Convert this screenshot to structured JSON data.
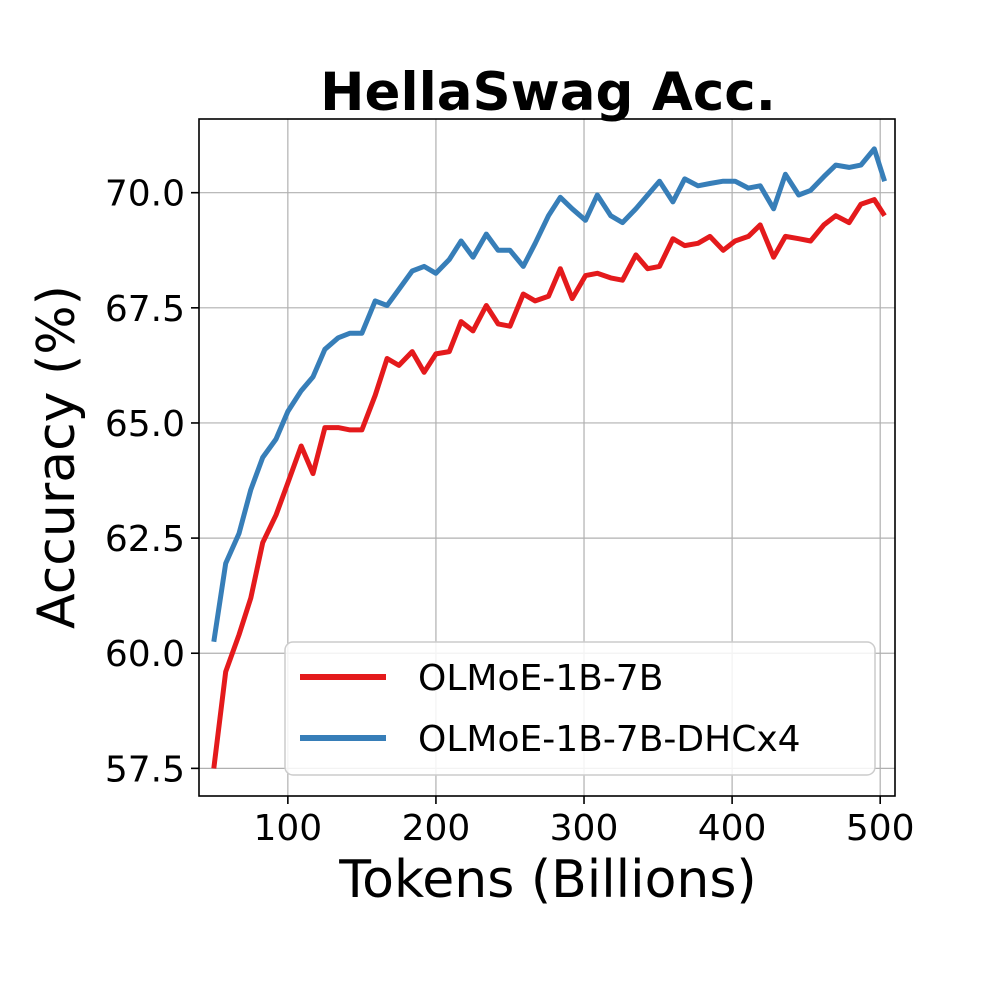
{
  "chart_data": {
    "type": "line",
    "title": "HellaSwag Acc.",
    "xlabel": "Tokens (Billions)",
    "ylabel": "Accuracy (%)",
    "xlim": [
      40,
      510
    ],
    "ylim": [
      56.9,
      71.6
    ],
    "xticks": [
      100,
      200,
      300,
      400,
      500
    ],
    "yticks": [
      57.5,
      60.0,
      62.5,
      65.0,
      67.5,
      70.0
    ],
    "ytick_labels": [
      "57.5",
      "60.0",
      "62.5",
      "65.0",
      "67.5",
      "70.0"
    ],
    "xtick_labels": [
      "100",
      "200",
      "300",
      "400",
      "500"
    ],
    "grid": true,
    "legend_position": "lower-right",
    "series": [
      {
        "name": "OLMoE-1B-7B",
        "color": "#e41a1c",
        "x": [
          50,
          58,
          67,
          75,
          83,
          92,
          100,
          109,
          117,
          125,
          134,
          142,
          150,
          159,
          167,
          175,
          184,
          192,
          200,
          209,
          217,
          225,
          234,
          242,
          250,
          259,
          267,
          276,
          284,
          292,
          301,
          309,
          318,
          326,
          335,
          343,
          351,
          360,
          368,
          377,
          385,
          394,
          402,
          411,
          419,
          428,
          436,
          445,
          453,
          462,
          470,
          479,
          487,
          496,
          503
        ],
        "y": [
          57.5,
          59.6,
          60.4,
          61.2,
          62.4,
          63.0,
          63.7,
          64.5,
          63.9,
          64.9,
          64.9,
          64.85,
          64.85,
          65.6,
          66.4,
          66.25,
          66.55,
          66.1,
          66.5,
          66.55,
          67.2,
          67.0,
          67.55,
          67.15,
          67.1,
          67.8,
          67.65,
          67.75,
          68.35,
          67.7,
          68.2,
          68.25,
          68.15,
          68.1,
          68.65,
          68.35,
          68.4,
          69.0,
          68.85,
          68.9,
          69.05,
          68.75,
          68.95,
          69.05,
          69.3,
          68.6,
          69.05,
          69.0,
          68.95,
          69.3,
          69.5,
          69.35,
          69.75,
          69.85,
          69.5
        ]
      },
      {
        "name": "OLMoE-1B-7B-DHCx4",
        "color": "#377eb8",
        "x": [
          50,
          58,
          67,
          75,
          83,
          92,
          100,
          109,
          117,
          125,
          134,
          142,
          150,
          159,
          167,
          175,
          184,
          192,
          200,
          209,
          217,
          225,
          234,
          242,
          250,
          259,
          267,
          276,
          284,
          292,
          301,
          309,
          318,
          326,
          335,
          343,
          351,
          360,
          368,
          377,
          385,
          394,
          402,
          411,
          419,
          428,
          436,
          445,
          453,
          462,
          470,
          479,
          487,
          496,
          503
        ],
        "y": [
          60.25,
          61.95,
          62.6,
          63.55,
          64.25,
          64.65,
          65.25,
          65.7,
          66.0,
          66.6,
          66.85,
          66.95,
          66.95,
          67.65,
          67.55,
          67.9,
          68.3,
          68.4,
          68.25,
          68.55,
          68.95,
          68.6,
          69.1,
          68.75,
          68.75,
          68.4,
          68.9,
          69.5,
          69.9,
          69.65,
          69.4,
          69.95,
          69.5,
          69.35,
          69.65,
          69.95,
          70.25,
          69.8,
          70.3,
          70.15,
          70.2,
          70.25,
          70.25,
          70.1,
          70.15,
          69.65,
          70.4,
          69.95,
          70.05,
          70.35,
          70.6,
          70.55,
          70.6,
          70.95,
          70.25
        ]
      }
    ]
  }
}
